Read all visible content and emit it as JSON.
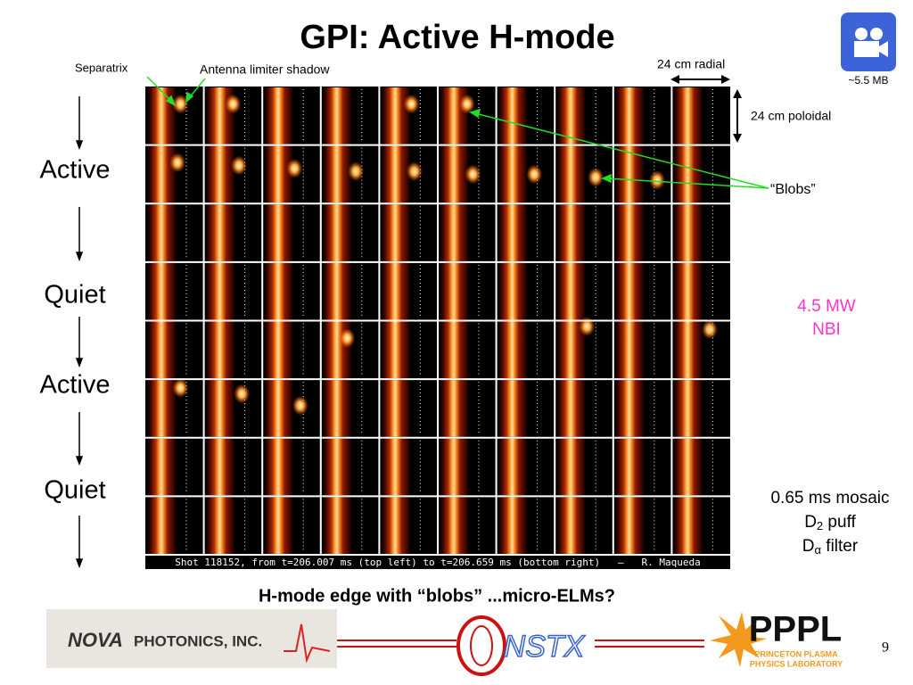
{
  "title": "GPI: Active H-mode",
  "labels": {
    "separatrix": "Separatrix",
    "antenna": "Antenna limiter shadow",
    "radial": "24 cm radial",
    "poloidal": "24 cm poloidal",
    "blobs": "“Blobs”"
  },
  "phases": [
    "Active",
    "Quiet",
    "Active",
    "Quiet"
  ],
  "heating": [
    "4.5 MW",
    "NBI"
  ],
  "notes": {
    "mosaic": "0.65 ms mosaic",
    "puff": {
      "base": "D",
      "sub": "2",
      "rest": " puff"
    },
    "filter": {
      "base": "D",
      "sub": "α",
      "rest": " filter"
    }
  },
  "video_size": "~5.5 MB",
  "mosaic_caption": "Shot 118152, from t=206.007 ms (top left) to t=206.659 ms (bottom right)   —   R. Maqueda",
  "caption": "H-mode edge with “blobs” ...micro-ELMs?",
  "logos": {
    "nova": "NOVA",
    "nova_sub": "PHOTONICS, INC.",
    "nstx": "NSTX",
    "pppl": "PPPL",
    "pppl_sub": [
      "PRINCETON PLASMA",
      "PHYSICS LABORATORY"
    ]
  },
  "page_number": 9
}
